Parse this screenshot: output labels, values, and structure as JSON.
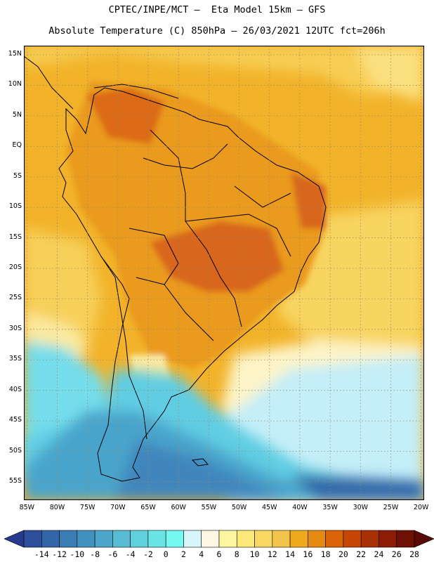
{
  "header": {
    "line1": "CPTEC/INPE/MCT –  Eta Model 15km – GFS",
    "line2": "Absolute Temperature (C) 850hPa – 26/03/2021 12UTC fct=206h"
  },
  "map": {
    "lat_labels": [
      "15N",
      "10N",
      "5N",
      "EQ",
      "5S",
      "10S",
      "15S",
      "20S",
      "25S",
      "30S",
      "35S",
      "40S",
      "45S",
      "50S",
      "55S"
    ],
    "lat_values": [
      15,
      10,
      5,
      0,
      -5,
      -10,
      -15,
      -20,
      -25,
      -30,
      -35,
      -40,
      -45,
      -50,
      -55
    ],
    "lon_labels": [
      "85W",
      "80W",
      "75W",
      "70W",
      "65W",
      "60W",
      "55W",
      "50W",
      "45W",
      "40W",
      "35W",
      "30W",
      "25W",
      "20W"
    ],
    "lon_values": [
      -85,
      -80,
      -75,
      -70,
      -65,
      -60,
      -55,
      -50,
      -45,
      -40,
      -35,
      -30,
      -25,
      -20
    ],
    "lon_range": [
      -85.5,
      -19.5
    ],
    "lat_range": [
      -58,
      16.5
    ]
  },
  "colorbar": {
    "labels": [
      "-14",
      "-12",
      "-10",
      "-8",
      "-6",
      "-4",
      "-2",
      "0",
      "2",
      "4",
      "6",
      "8",
      "10",
      "12",
      "14",
      "16",
      "18",
      "20",
      "22",
      "24",
      "26",
      "28"
    ],
    "colors": [
      "#273b8e",
      "#2d4f9b",
      "#3366a8",
      "#3a7cb4",
      "#4391bf",
      "#4ca6c9",
      "#56bbd3",
      "#60d0dc",
      "#6ae5e6",
      "#74f9f0",
      "#d6f6fb",
      "#fdf7e4",
      "#fdf6a0",
      "#fbe978",
      "#f8d762",
      "#f3c44c",
      "#eeaa1c",
      "#e58a12",
      "#dc6408",
      "#c74604",
      "#a83004",
      "#8c1c04",
      "#6e1004",
      "#5a0a06"
    ]
  }
}
